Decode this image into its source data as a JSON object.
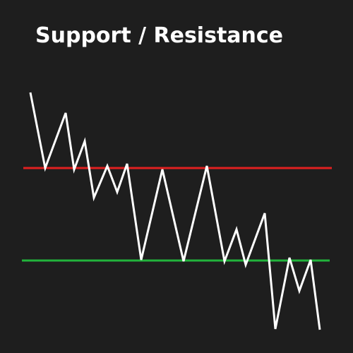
{
  "title": "Support / Resistance"
}
